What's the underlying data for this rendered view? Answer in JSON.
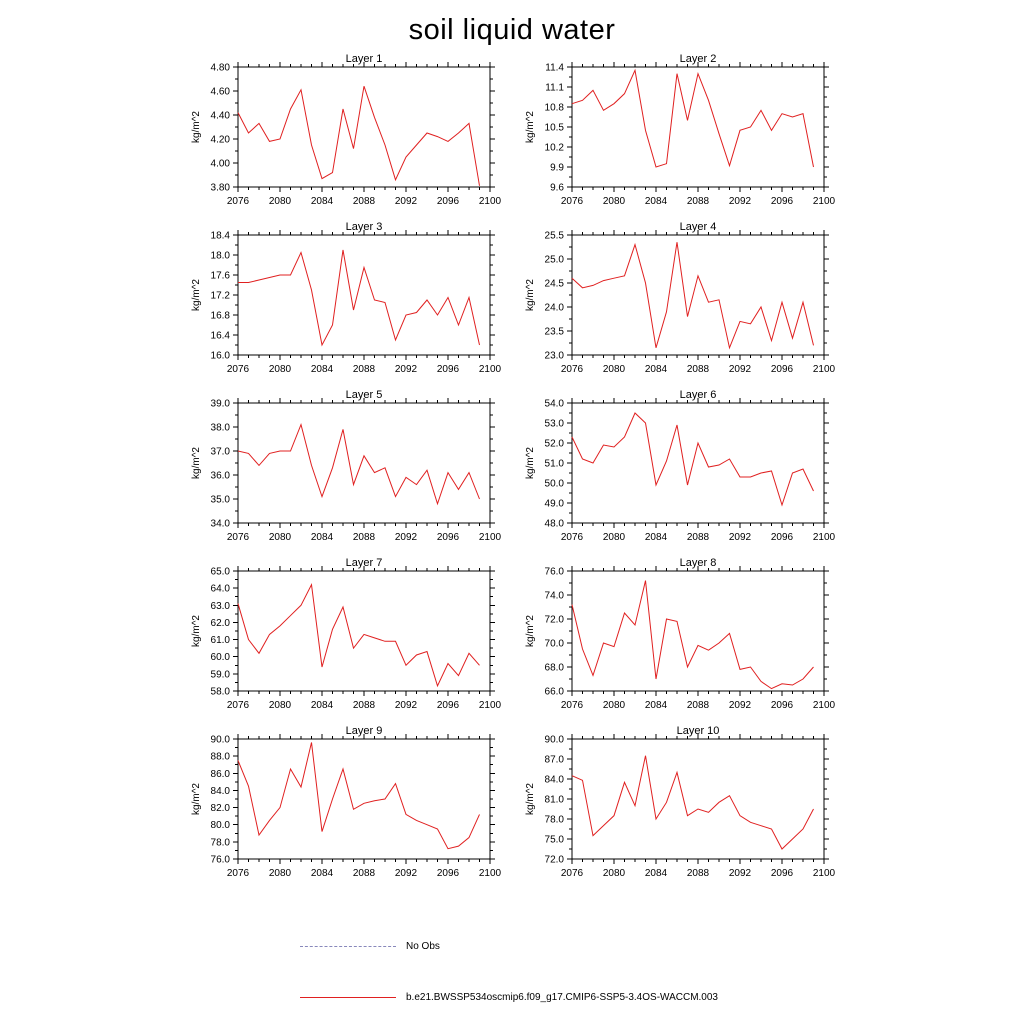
{
  "page_title": "soil liquid water",
  "chart_data": {
    "type": "line",
    "title": "soil liquid water",
    "ylabel": "kg/m^2",
    "series_color": "#e02020",
    "xlim": [
      2076,
      2100
    ],
    "xticks": [
      2076,
      2080,
      2084,
      2088,
      2092,
      2096,
      2100
    ],
    "years": [
      2076,
      2077,
      2078,
      2079,
      2080,
      2081,
      2082,
      2083,
      2084,
      2085,
      2086,
      2087,
      2088,
      2089,
      2090,
      2091,
      2092,
      2093,
      2094,
      2095,
      2096,
      2097,
      2098,
      2099
    ],
    "legend": [
      {
        "label": "No Obs",
        "style": "dashed",
        "color": "#8888bb"
      },
      {
        "label": "b.e21.BWSSP534oscmip6.f09_g17.CMIP6-SSP5-3.4OS-WACCM.003",
        "style": "solid",
        "color": "#e02020"
      }
    ],
    "panels": [
      {
        "title": "Layer 1",
        "ylim": [
          3.8,
          4.8
        ],
        "ytick_step": 0.2,
        "decimals": 2,
        "values": [
          4.42,
          4.25,
          4.33,
          4.18,
          4.2,
          4.45,
          4.61,
          4.15,
          3.87,
          3.92,
          4.45,
          4.12,
          4.64,
          4.38,
          4.15,
          3.86,
          4.05,
          4.15,
          4.25,
          4.22,
          4.18,
          4.25,
          4.33,
          3.81
        ]
      },
      {
        "title": "Layer 2",
        "ylim": [
          9.6,
          11.4
        ],
        "ytick_step": 0.3,
        "decimals": 1,
        "values": [
          10.85,
          10.9,
          11.05,
          10.75,
          10.85,
          11.0,
          11.35,
          10.45,
          9.9,
          9.95,
          11.3,
          10.6,
          11.3,
          10.9,
          10.4,
          9.92,
          10.45,
          10.5,
          10.75,
          10.45,
          10.7,
          10.65,
          10.7,
          9.9
        ]
      },
      {
        "title": "Layer 3",
        "ylim": [
          16.0,
          18.4
        ],
        "ytick_step": 0.4,
        "decimals": 1,
        "values": [
          17.45,
          17.45,
          17.5,
          17.55,
          17.6,
          17.6,
          18.05,
          17.3,
          16.2,
          16.6,
          18.1,
          16.9,
          17.75,
          17.1,
          17.05,
          16.3,
          16.8,
          16.85,
          17.1,
          16.8,
          17.15,
          16.6,
          17.15,
          16.2
        ]
      },
      {
        "title": "Layer 4",
        "ylim": [
          23.0,
          25.5
        ],
        "ytick_step": 0.5,
        "decimals": 1,
        "values": [
          24.6,
          24.4,
          24.45,
          24.55,
          24.6,
          24.65,
          25.3,
          24.5,
          23.15,
          23.9,
          25.35,
          23.8,
          24.65,
          24.1,
          24.15,
          23.15,
          23.7,
          23.65,
          24.0,
          23.3,
          24.1,
          23.35,
          24.1,
          23.2
        ]
      },
      {
        "title": "Layer 5",
        "ylim": [
          34.0,
          39.0
        ],
        "ytick_step": 1.0,
        "decimals": 1,
        "values": [
          37.0,
          36.9,
          36.4,
          36.9,
          37.0,
          37.0,
          38.1,
          36.4,
          35.1,
          36.3,
          37.9,
          35.6,
          36.8,
          36.1,
          36.3,
          35.1,
          35.9,
          35.6,
          36.2,
          34.8,
          36.1,
          35.4,
          36.1,
          35.0
        ]
      },
      {
        "title": "Layer 6",
        "ylim": [
          48.0,
          54.0
        ],
        "ytick_step": 1.0,
        "decimals": 1,
        "values": [
          52.3,
          51.2,
          51.0,
          51.9,
          51.8,
          52.3,
          53.5,
          53.0,
          49.9,
          51.1,
          52.9,
          49.9,
          52.0,
          50.8,
          50.9,
          51.2,
          50.3,
          50.3,
          50.5,
          50.6,
          48.9,
          50.5,
          50.7,
          49.6
        ]
      },
      {
        "title": "Layer 7",
        "ylim": [
          58.0,
          65.0
        ],
        "ytick_step": 1.0,
        "decimals": 1,
        "values": [
          63.1,
          61.0,
          60.2,
          61.3,
          61.8,
          62.4,
          63.0,
          64.2,
          59.4,
          61.6,
          62.9,
          60.5,
          61.3,
          61.1,
          60.9,
          60.9,
          59.5,
          60.1,
          60.3,
          58.3,
          59.6,
          58.9,
          60.2,
          59.5
        ]
      },
      {
        "title": "Layer 8",
        "ylim": [
          66.0,
          76.0
        ],
        "ytick_step": 2.0,
        "decimals": 1,
        "values": [
          73.2,
          69.5,
          67.3,
          70.0,
          69.7,
          72.5,
          71.5,
          75.2,
          67.0,
          72.0,
          71.8,
          68.0,
          69.8,
          69.4,
          70.0,
          70.8,
          67.8,
          68.0,
          66.8,
          66.2,
          66.6,
          66.5,
          67.0,
          68.0
        ]
      },
      {
        "title": "Layer 9",
        "ylim": [
          76.0,
          90.0
        ],
        "ytick_step": 2.0,
        "decimals": 1,
        "values": [
          87.5,
          84.5,
          78.8,
          80.5,
          82.0,
          86.5,
          84.4,
          89.6,
          79.2,
          83.0,
          86.5,
          81.8,
          82.5,
          82.8,
          83.0,
          84.8,
          81.2,
          80.5,
          80.0,
          79.5,
          77.2,
          77.5,
          78.5,
          81.2
        ]
      },
      {
        "title": "Layer 10",
        "ylim": [
          72.0,
          90.0
        ],
        "ytick_step": 3.0,
        "decimals": 1,
        "values": [
          84.5,
          83.8,
          75.5,
          77.0,
          78.5,
          83.5,
          80.0,
          87.5,
          78.0,
          80.5,
          85.0,
          78.5,
          79.5,
          79.0,
          80.5,
          81.5,
          78.5,
          77.5,
          77.0,
          76.5,
          73.5,
          75.0,
          76.5,
          79.5
        ]
      }
    ]
  }
}
